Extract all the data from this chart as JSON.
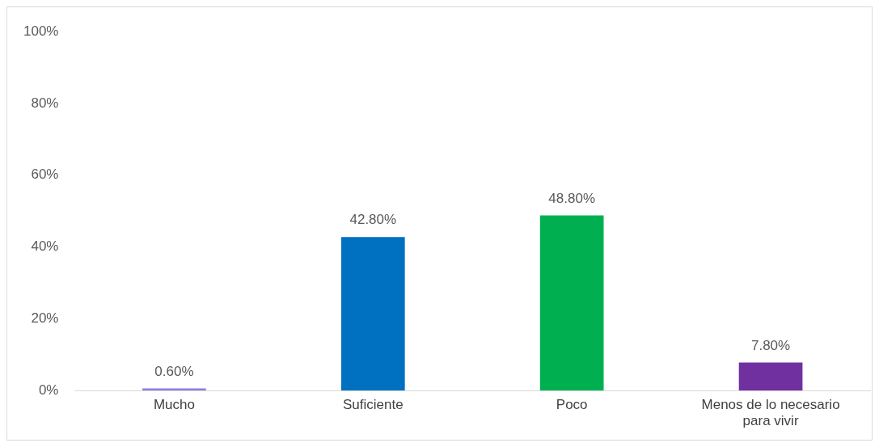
{
  "chart_data": {
    "type": "bar",
    "categories": [
      "Mucho",
      "Suficiente",
      "Poco",
      "Menos de lo necesario para vivir"
    ],
    "values": [
      0.6,
      42.8,
      48.8,
      7.8
    ],
    "colors": [
      "#8f7fe0",
      "#0070c0",
      "#00b050",
      "#7030a0"
    ],
    "value_labels": [
      "0.60%",
      "42.80%",
      "48.80%",
      "7.80%"
    ],
    "ylim": [
      0,
      100
    ],
    "yticks": [
      {
        "value": 0,
        "label": "0%"
      },
      {
        "value": 20,
        "label": "20%"
      },
      {
        "value": 40,
        "label": "40%"
      },
      {
        "value": 60,
        "label": "60%"
      },
      {
        "value": 80,
        "label": "80%"
      },
      {
        "value": 100,
        "label": "100%"
      }
    ],
    "grid": false,
    "legend": false
  }
}
